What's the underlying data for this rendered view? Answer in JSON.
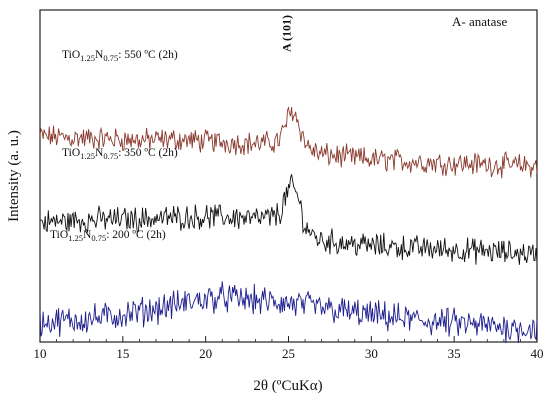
{
  "chart_data": {
    "type": "line",
    "xlabel": "2θ (ºCuKα)",
    "ylabel": "Intensity (a. u.)",
    "xlim": [
      10,
      40
    ],
    "xticks": [
      10,
      15,
      20,
      25,
      30,
      35,
      40
    ],
    "legend_note": "A- anatase",
    "peak_label": "A (101)",
    "peak_position": 25.3,
    "grid": false,
    "series": [
      {
        "name": "TiO1.25N0.75: 550 ºC (2h)",
        "label_parts": {
          "base1": "TiO",
          "sub1": "1.25",
          "base2": "N",
          "sub2": "0.75",
          "rest": ": 550 ºC (2h)"
        },
        "color": "#8b3a2e",
        "x": [
          10,
          12,
          14,
          16,
          18,
          20,
          22,
          23,
          24,
          24.5,
          25,
          25.3,
          25.6,
          26,
          26.5,
          27,
          28,
          30,
          32,
          34,
          36,
          38,
          40
        ],
        "y": [
          0.62,
          0.615,
          0.612,
          0.608,
          0.61,
          0.605,
          0.6,
          0.598,
          0.6,
          0.612,
          0.68,
          0.7,
          0.66,
          0.6,
          0.575,
          0.565,
          0.56,
          0.55,
          0.545,
          0.54,
          0.537,
          0.533,
          0.53
        ]
      },
      {
        "name": "TiO1.25N0.75: 350 ºC (2h)",
        "label_parts": {
          "base1": "TiO",
          "sub1": "1.25",
          "base2": "N",
          "sub2": "0.75",
          "rest": ": 350 ºC (2h)"
        },
        "color": "#111111",
        "x": [
          10,
          12,
          14,
          16,
          18,
          20,
          22,
          23,
          24,
          24.5,
          25,
          25.3,
          25.6,
          26,
          26.5,
          27,
          28,
          30,
          32,
          34,
          36,
          38,
          40
        ],
        "y": [
          0.36,
          0.365,
          0.37,
          0.37,
          0.375,
          0.378,
          0.375,
          0.37,
          0.375,
          0.39,
          0.46,
          0.47,
          0.43,
          0.35,
          0.32,
          0.305,
          0.3,
          0.29,
          0.285,
          0.28,
          0.275,
          0.27,
          0.265
        ]
      },
      {
        "name": "TiO1.25N0.75: 200 ºC (2h)",
        "label_parts": {
          "base1": "TiO",
          "sub1": "1.25",
          "base2": "N",
          "sub2": "0.75",
          "rest": ": 200 ºC (2h)"
        },
        "color": "#1f1f8f",
        "x": [
          10,
          12,
          14,
          16,
          18,
          19,
          20,
          21,
          22,
          23,
          24,
          25,
          26,
          28,
          30,
          32,
          34,
          36,
          38,
          40
        ],
        "y": [
          0.06,
          0.065,
          0.075,
          0.09,
          0.11,
          0.12,
          0.13,
          0.135,
          0.13,
          0.125,
          0.12,
          0.115,
          0.11,
          0.095,
          0.08,
          0.07,
          0.06,
          0.052,
          0.045,
          0.04
        ]
      }
    ]
  }
}
